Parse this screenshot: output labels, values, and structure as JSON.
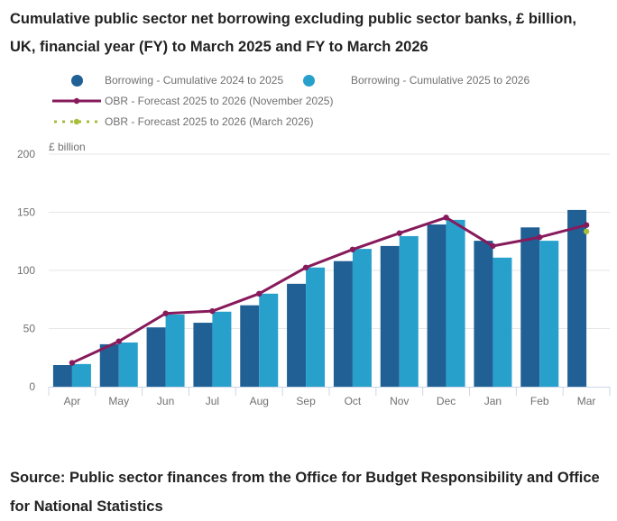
{
  "title": "Cumulative public sector net borrowing excluding public sector banks, £ billion, UK, financial year (FY) to March 2025 and FY to March 2026",
  "legend": [
    {
      "label": "Borrowing - Cumulative 2024 to 2025",
      "marker": "circle",
      "color": "#206095"
    },
    {
      "label": "Borrowing - Cumulative 2025 to 2026",
      "marker": "circle",
      "color": "#27a0cc"
    },
    {
      "label": "OBR - Forecast 2025 to 2026 (November 2025)",
      "marker": "line-dot",
      "color": "#871a5b"
    },
    {
      "label": "OBR - Forecast 2025 to 2026 (March 2026)",
      "marker": "dotted-line-dot",
      "color": "#a8bd3a"
    }
  ],
  "source": "Source: Public sector finances from the Office for Budget Responsibility and Office for National Statistics",
  "chart_data": {
    "type": "bar",
    "title": "Cumulative public sector net borrowing excluding public sector banks, £ billion, UK, financial year (FY) to March 2025 and FY to March 2026",
    "xlabel": "",
    "ylabel": "£ billion",
    "ylim": [
      0,
      200
    ],
    "yticks": [
      0,
      50,
      100,
      150,
      200
    ],
    "grid": true,
    "legend_position": "top",
    "categories": [
      "Apr",
      "May",
      "Jun",
      "Jul",
      "Aug",
      "Sep",
      "Oct",
      "Nov",
      "Dec",
      "Jan",
      "Feb",
      "Mar"
    ],
    "series": [
      {
        "name": "Borrowing - Cumulative 2024 to 2025",
        "type": "bar",
        "color": "#206095",
        "values": [
          18.6,
          36.5,
          51,
          55,
          70,
          88.5,
          108,
          121,
          139.5,
          125.5,
          137,
          152
        ]
      },
      {
        "name": "Borrowing - Cumulative 2025 to 2026",
        "type": "bar",
        "color": "#27a0cc",
        "values": [
          19.5,
          38,
          62,
          64.5,
          80,
          102.5,
          118.5,
          129.5,
          143.5,
          111,
          125.5,
          null
        ]
      },
      {
        "name": "OBR - Forecast 2025 to 2026 (November 2025)",
        "type": "line",
        "color": "#871a5b",
        "values": [
          20.5,
          39,
          63,
          65,
          80,
          102.5,
          118,
          132,
          145.5,
          121,
          128.5,
          139
        ]
      },
      {
        "name": "OBR - Forecast 2025 to 2026 (March 2026)",
        "type": "point",
        "color": "#a8bd3a",
        "values": [
          null,
          null,
          null,
          null,
          null,
          null,
          null,
          null,
          null,
          null,
          null,
          133.5
        ]
      }
    ]
  }
}
